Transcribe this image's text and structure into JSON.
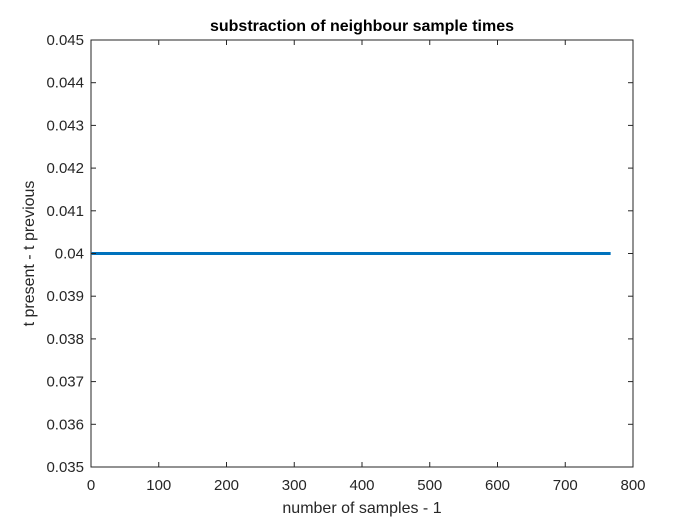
{
  "chart_data": {
    "type": "line",
    "title": "substraction of neighbour sample times",
    "xlabel": "number of samples - 1",
    "ylabel": "t present - t previous",
    "xlim": [
      0,
      800
    ],
    "ylim": [
      0.035,
      0.045
    ],
    "xticks": [
      0,
      100,
      200,
      300,
      400,
      500,
      600,
      700,
      800
    ],
    "yticks": [
      0.035,
      0.036,
      0.037,
      0.038,
      0.039,
      0.04,
      0.041,
      0.042,
      0.043,
      0.044,
      0.045
    ],
    "xtick_labels": [
      "0",
      "100",
      "200",
      "300",
      "400",
      "500",
      "600",
      "700",
      "800"
    ],
    "ytick_labels": [
      "0.035",
      "0.036",
      "0.037",
      "0.038",
      "0.039",
      "0.04",
      "0.041",
      "0.042",
      "0.043",
      "0.044",
      "0.045"
    ],
    "grid": false,
    "series": [
      {
        "x": [
          1,
          767
        ],
        "y": [
          0.04,
          0.04
        ],
        "color": "#0072BD"
      }
    ]
  }
}
